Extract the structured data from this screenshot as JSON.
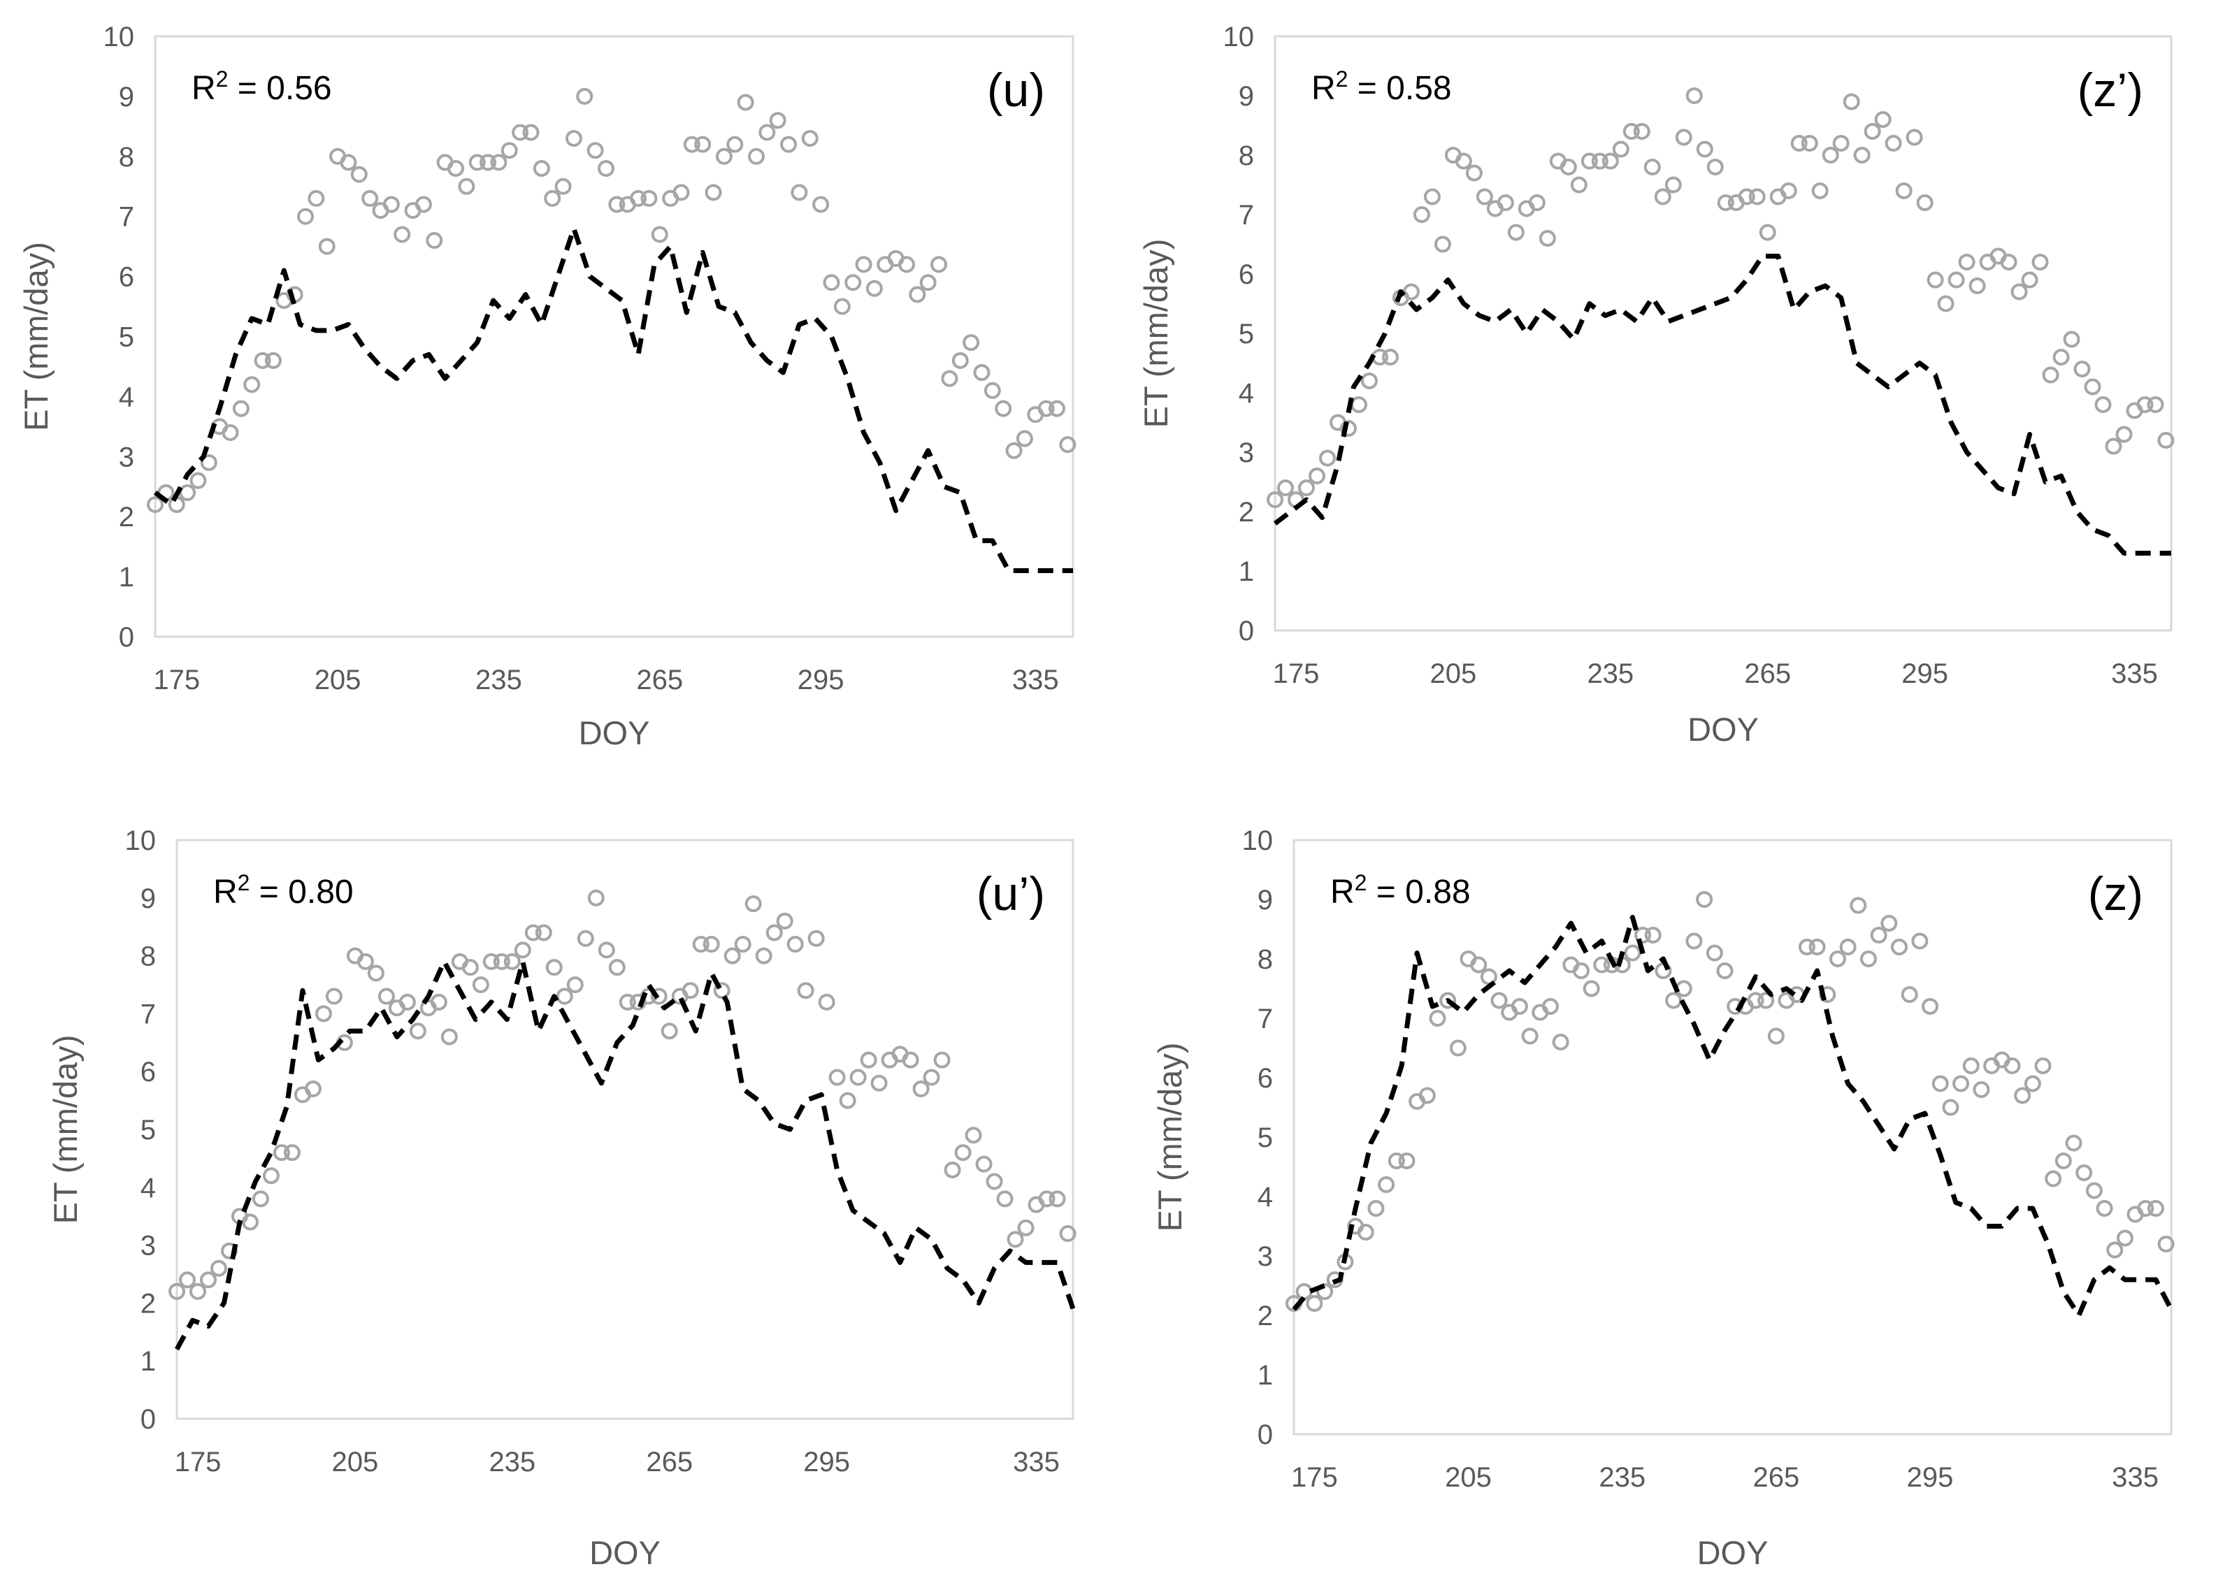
{
  "chart_data": [
    {
      "type": "scatter+line",
      "panel_label": "(u)",
      "r2_label": "R",
      "r2_exponent": "2",
      "r2_value": " = 0.56",
      "xlabel": "DOY",
      "ylabel": "ET (mm/day)",
      "xticks": [
        175,
        205,
        235,
        265,
        295,
        335
      ],
      "yticks": [
        0,
        1,
        2,
        3,
        4,
        5,
        6,
        7,
        8,
        9,
        10
      ],
      "xlim": [
        171,
        342
      ],
      "ylim": [
        0,
        10
      ],
      "series": [
        {
          "name": "observed",
          "kind": "scatter",
          "color": "#a6a6a6",
          "ref": "obs"
        },
        {
          "name": "modeled",
          "kind": "dashed-line",
          "color": "#000000",
          "x": [
            171,
            174,
            177,
            180,
            183,
            186,
            189,
            192,
            195,
            198,
            201,
            204,
            207,
            210,
            213,
            216,
            219,
            222,
            225,
            228,
            231,
            234,
            237,
            240,
            243,
            246,
            249,
            252,
            255,
            258,
            261,
            264,
            267,
            270,
            273,
            276,
            279,
            282,
            285,
            288,
            291,
            294,
            297,
            300,
            303,
            306,
            309,
            312,
            315,
            318,
            321,
            324,
            327,
            330,
            333,
            336,
            339,
            342
          ],
          "y": [
            2.4,
            2.2,
            2.7,
            3.0,
            3.8,
            4.7,
            5.3,
            5.2,
            6.1,
            5.2,
            5.1,
            5.1,
            5.2,
            4.8,
            4.5,
            4.3,
            4.6,
            4.7,
            4.3,
            4.6,
            4.9,
            5.6,
            5.3,
            5.7,
            5.2,
            6.0,
            6.8,
            6.0,
            5.8,
            5.6,
            4.7,
            6.2,
            6.5,
            5.4,
            6.4,
            5.5,
            5.4,
            4.9,
            4.6,
            4.4,
            5.2,
            5.3,
            5.0,
            4.3,
            3.4,
            2.9,
            2.1,
            2.6,
            3.1,
            2.5,
            2.4,
            1.6,
            1.6,
            1.1,
            1.1,
            1.1,
            1.1,
            1.1
          ]
        }
      ]
    },
    {
      "type": "scatter+line",
      "panel_label": "(z’)",
      "r2_label": "R",
      "r2_exponent": "2",
      "r2_value": " = 0.58",
      "xlabel": "DOY",
      "ylabel": "ET (mm/day)",
      "xticks": [
        175,
        205,
        235,
        265,
        295,
        335
      ],
      "yticks": [
        0,
        1,
        2,
        3,
        4,
        5,
        6,
        7,
        8,
        9,
        10
      ],
      "xlim": [
        171,
        342
      ],
      "ylim": [
        0,
        10
      ],
      "series": [
        {
          "name": "observed",
          "kind": "scatter",
          "color": "#a6a6a6",
          "ref": "obs"
        },
        {
          "name": "modeled",
          "kind": "dashed-line",
          "color": "#000000",
          "x": [
            171,
            174,
            177,
            180,
            183,
            186,
            189,
            192,
            195,
            198,
            201,
            204,
            207,
            210,
            213,
            216,
            219,
            222,
            225,
            228,
            231,
            234,
            237,
            240,
            243,
            246,
            249,
            252,
            255,
            258,
            261,
            264,
            267,
            270,
            273,
            276,
            279,
            282,
            285,
            288,
            291,
            294,
            297,
            300,
            303,
            306,
            309,
            312,
            315,
            318,
            321,
            324,
            327,
            330,
            333,
            336,
            339,
            342
          ],
          "y": [
            1.8,
            2.0,
            2.2,
            1.9,
            2.8,
            4.1,
            4.5,
            5.0,
            5.7,
            5.4,
            5.6,
            5.9,
            5.5,
            5.3,
            5.2,
            5.4,
            5.0,
            5.4,
            5.2,
            4.9,
            5.5,
            5.3,
            5.4,
            5.2,
            5.6,
            5.2,
            5.3,
            5.4,
            5.5,
            5.6,
            5.9,
            6.3,
            6.3,
            5.4,
            5.7,
            5.8,
            5.6,
            4.5,
            4.3,
            4.1,
            4.3,
            4.5,
            4.3,
            3.5,
            3.0,
            2.7,
            2.4,
            2.3,
            3.3,
            2.5,
            2.6,
            2.0,
            1.7,
            1.6,
            1.3,
            1.3,
            1.3,
            1.3
          ]
        }
      ]
    },
    {
      "type": "scatter+line",
      "panel_label": "(u’)",
      "r2_label": "R",
      "r2_exponent": "2",
      "r2_value": " = 0.80",
      "xlabel": "DOY",
      "ylabel": "ET (mm/day)",
      "xticks": [
        175,
        205,
        235,
        265,
        295,
        335
      ],
      "yticks": [
        0,
        1,
        2,
        3,
        4,
        5,
        6,
        7,
        8,
        9,
        10
      ],
      "xlim": [
        171,
        342
      ],
      "ylim": [
        0,
        10
      ],
      "series": [
        {
          "name": "observed",
          "kind": "scatter",
          "color": "#a6a6a6",
          "ref": "obs"
        },
        {
          "name": "modeled",
          "kind": "dashed-line",
          "color": "#000000",
          "x": [
            171,
            174,
            177,
            180,
            183,
            186,
            189,
            192,
            195,
            198,
            201,
            204,
            207,
            210,
            213,
            216,
            219,
            222,
            225,
            228,
            231,
            234,
            237,
            240,
            243,
            246,
            249,
            252,
            255,
            258,
            261,
            264,
            267,
            270,
            273,
            276,
            279,
            282,
            285,
            288,
            291,
            294,
            297,
            300,
            303,
            306,
            309,
            312,
            315,
            318,
            321,
            324,
            327,
            330,
            333,
            336,
            339,
            342
          ],
          "y": [
            1.2,
            1.7,
            1.6,
            2.0,
            3.4,
            4.1,
            4.6,
            5.4,
            7.4,
            6.2,
            6.4,
            6.7,
            6.7,
            7.1,
            6.6,
            6.9,
            7.3,
            7.9,
            7.4,
            6.9,
            7.2,
            6.9,
            7.9,
            6.7,
            7.3,
            6.8,
            6.3,
            5.8,
            6.5,
            6.8,
            7.5,
            7.1,
            7.3,
            6.7,
            7.7,
            7.2,
            5.7,
            5.5,
            5.1,
            5.0,
            5.5,
            5.6,
            4.3,
            3.6,
            3.4,
            3.2,
            2.7,
            3.3,
            3.1,
            2.6,
            2.4,
            2.0,
            2.6,
            2.9,
            2.7,
            2.7,
            2.7,
            1.9
          ]
        }
      ]
    },
    {
      "type": "scatter+line",
      "panel_label": "(z)",
      "r2_label": "R",
      "r2_exponent": "2",
      "r2_value": " = 0.88",
      "xlabel": "DOY",
      "ylabel": "ET (mm/day)",
      "xticks": [
        175,
        205,
        235,
        265,
        295,
        335
      ],
      "yticks": [
        0,
        1,
        2,
        3,
        4,
        5,
        6,
        7,
        8,
        9,
        10
      ],
      "xlim": [
        171,
        342
      ],
      "ylim": [
        0,
        10
      ],
      "series": [
        {
          "name": "observed",
          "kind": "scatter",
          "color": "#a6a6a6",
          "ref": "obs"
        },
        {
          "name": "modeled",
          "kind": "dashed-line",
          "color": "#000000",
          "x": [
            171,
            174,
            177,
            180,
            183,
            186,
            189,
            192,
            195,
            198,
            201,
            204,
            207,
            210,
            213,
            216,
            219,
            222,
            225,
            228,
            231,
            234,
            237,
            240,
            243,
            246,
            249,
            252,
            255,
            258,
            261,
            264,
            267,
            270,
            273,
            276,
            279,
            282,
            285,
            288,
            291,
            294,
            297,
            300,
            303,
            306,
            309,
            312,
            315,
            318,
            321,
            324,
            327,
            330,
            333,
            336,
            339,
            342
          ],
          "y": [
            2.1,
            2.4,
            2.5,
            2.6,
            3.8,
            4.9,
            5.4,
            6.2,
            8.1,
            7.2,
            7.3,
            7.1,
            7.4,
            7.6,
            7.8,
            7.6,
            7.9,
            8.2,
            8.6,
            8.1,
            8.3,
            7.8,
            8.7,
            7.8,
            8.0,
            7.4,
            6.9,
            6.3,
            6.8,
            7.2,
            7.7,
            7.4,
            7.5,
            7.3,
            7.8,
            6.7,
            5.9,
            5.6,
            5.2,
            4.8,
            5.3,
            5.4,
            4.7,
            3.9,
            3.8,
            3.5,
            3.5,
            3.8,
            3.8,
            3.2,
            2.4,
            2.0,
            2.6,
            2.8,
            2.6,
            2.6,
            2.6,
            2.1
          ]
        }
      ]
    }
  ],
  "observed_points": {
    "x": [
      171,
      173,
      175,
      177,
      179,
      181,
      183,
      185,
      187,
      189,
      191,
      193,
      195,
      197,
      199,
      201,
      203,
      205,
      207,
      209,
      211,
      213,
      215,
      217,
      219,
      221,
      223,
      225,
      227,
      229,
      231,
      233,
      235,
      237,
      239,
      241,
      243,
      245,
      247,
      249,
      251,
      253,
      255,
      257,
      259,
      261,
      263,
      265,
      267,
      269,
      271,
      273,
      275,
      277,
      279,
      281,
      283,
      285,
      287,
      289,
      291,
      293,
      295,
      297,
      299,
      301,
      303,
      305,
      307,
      309,
      311,
      313,
      315,
      317,
      319,
      321,
      323,
      325,
      327,
      329,
      331,
      333,
      335,
      337,
      339,
      341
    ],
    "y": [
      2.2,
      2.4,
      2.2,
      2.4,
      2.6,
      2.9,
      3.5,
      3.4,
      3.8,
      4.2,
      4.6,
      4.6,
      5.6,
      5.7,
      7.0,
      7.3,
      6.5,
      8.0,
      7.9,
      7.7,
      7.3,
      7.1,
      7.2,
      6.7,
      7.1,
      7.2,
      6.6,
      7.9,
      7.8,
      7.5,
      7.9,
      7.9,
      7.9,
      8.1,
      8.4,
      8.4,
      7.8,
      7.3,
      7.5,
      8.3,
      9.0,
      8.1,
      7.8,
      7.2,
      7.2,
      7.3,
      7.3,
      6.7,
      7.3,
      7.4,
      8.2,
      8.2,
      7.4,
      8.0,
      8.2,
      8.9,
      8.0,
      8.4,
      8.6,
      8.2,
      7.4,
      8.3,
      7.2,
      5.9,
      5.5,
      5.9,
      6.2,
      5.8,
      6.2,
      6.3,
      6.2,
      5.7,
      5.9,
      6.2,
      4.3,
      4.6,
      4.9,
      4.4,
      4.1,
      3.8,
      3.1,
      3.3,
      3.7,
      3.8,
      3.8,
      3.2
    ]
  }
}
